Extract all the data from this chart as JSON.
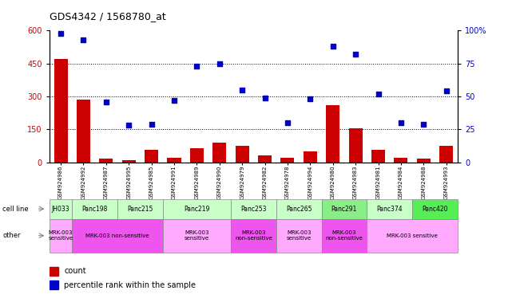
{
  "title": "GDS4342 / 1568780_at",
  "samples": [
    "GSM924986",
    "GSM924992",
    "GSM924987",
    "GSM924995",
    "GSM924985",
    "GSM924991",
    "GSM924989",
    "GSM924990",
    "GSM924979",
    "GSM924982",
    "GSM924978",
    "GSM924994",
    "GSM924980",
    "GSM924983",
    "GSM924981",
    "GSM924984",
    "GSM924988",
    "GSM924993"
  ],
  "counts": [
    470,
    285,
    15,
    10,
    55,
    20,
    65,
    90,
    75,
    30,
    20,
    50,
    260,
    155,
    55,
    20,
    15,
    75
  ],
  "percentile": [
    98,
    93,
    46,
    28,
    29,
    47,
    73,
    75,
    55,
    49,
    30,
    48,
    88,
    82,
    52,
    30,
    29,
    54
  ],
  "cell_lines": [
    {
      "name": "JH033",
      "start": 0,
      "end": 1,
      "color": "#c8ffc8"
    },
    {
      "name": "Panc198",
      "start": 1,
      "end": 3,
      "color": "#c8ffc8"
    },
    {
      "name": "Panc215",
      "start": 3,
      "end": 5,
      "color": "#c8ffc8"
    },
    {
      "name": "Panc219",
      "start": 5,
      "end": 8,
      "color": "#c8ffc8"
    },
    {
      "name": "Panc253",
      "start": 8,
      "end": 10,
      "color": "#c8ffc8"
    },
    {
      "name": "Panc265",
      "start": 10,
      "end": 12,
      "color": "#c8ffc8"
    },
    {
      "name": "Panc291",
      "start": 12,
      "end": 14,
      "color": "#88ee88"
    },
    {
      "name": "Panc374",
      "start": 14,
      "end": 16,
      "color": "#c8ffc8"
    },
    {
      "name": "Panc420",
      "start": 16,
      "end": 18,
      "color": "#55ee55"
    }
  ],
  "other_groups": [
    {
      "label": "MRK-003\nsensitive",
      "start": 0,
      "end": 1,
      "color": "#ffaaff"
    },
    {
      "label": "MRK-003 non-sensitive",
      "start": 1,
      "end": 5,
      "color": "#ee55ee"
    },
    {
      "label": "MRK-003\nsensitive",
      "start": 5,
      "end": 8,
      "color": "#ffaaff"
    },
    {
      "label": "MRK-003\nnon-sensitive",
      "start": 8,
      "end": 10,
      "color": "#ee55ee"
    },
    {
      "label": "MRK-003\nsensitive",
      "start": 10,
      "end": 12,
      "color": "#ffaaff"
    },
    {
      "label": "MRK-003\nnon-sensitive",
      "start": 12,
      "end": 14,
      "color": "#ee55ee"
    },
    {
      "label": "MRK-003 sensitive",
      "start": 14,
      "end": 18,
      "color": "#ffaaff"
    }
  ],
  "ylim_left": [
    0,
    600
  ],
  "ylim_right": [
    0,
    100
  ],
  "yticks_left": [
    0,
    150,
    300,
    450,
    600
  ],
  "yticks_right": [
    0,
    25,
    50,
    75,
    100
  ],
  "bar_color": "#cc0000",
  "scatter_color": "#0000cc",
  "dotted_lines": [
    150,
    300,
    450
  ]
}
